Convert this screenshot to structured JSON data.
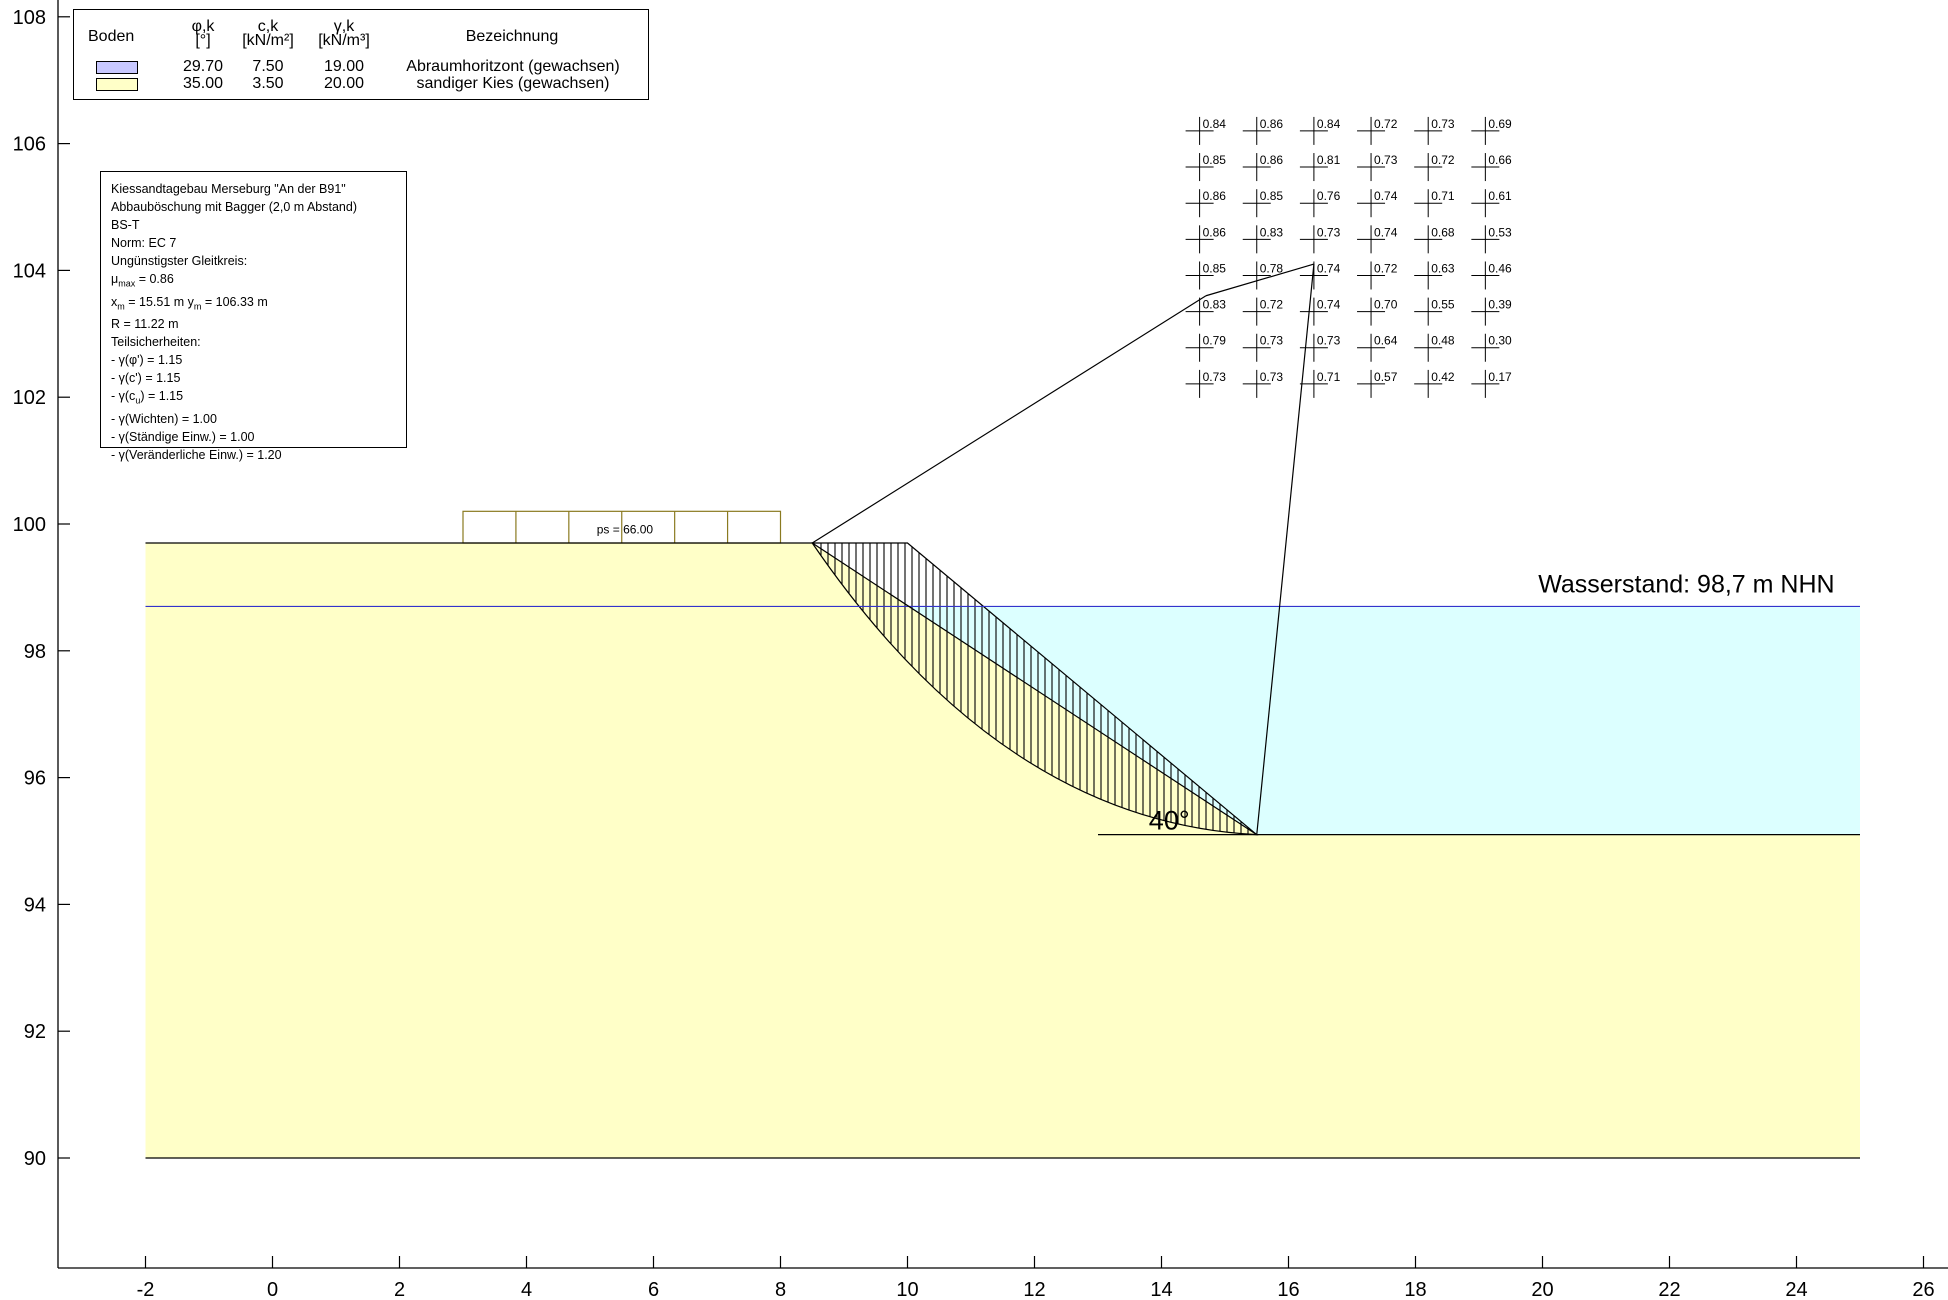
{
  "axes": {
    "x_ticks": [
      "-2",
      "0",
      "2",
      "4",
      "6",
      "8",
      "10",
      "12",
      "14",
      "16",
      "18",
      "20",
      "22",
      "24",
      "26"
    ],
    "y_ticks": [
      "108",
      "106",
      "104",
      "102",
      "100",
      "98",
      "96",
      "94",
      "92",
      "90"
    ]
  },
  "legend": {
    "headers": {
      "soil": "Boden",
      "phi": "φ,k",
      "phi_unit": "[°]",
      "c": "c,k",
      "c_unit": "[kN/m²]",
      "gamma": "γ,k",
      "gamma_unit": "[kN/m³]",
      "name": "Bezeichnung"
    },
    "rows": [
      {
        "color": "#c8c8ff",
        "phi": "29.70",
        "c": "7.50",
        "gamma": "19.00",
        "name": "Abraumhoritzont (gewachsen)"
      },
      {
        "color": "#ffffc8",
        "phi": "35.00",
        "c": "3.50",
        "gamma": "20.00",
        "name": "sandiger Kies (gewachsen)"
      }
    ]
  },
  "info": {
    "project": "Kiessandtagebau Merseburg \"An der B91\"",
    "case": "Abbauböschung mit Bagger (2,0 m Abstand)",
    "section": "BS-T",
    "norm": "Norm:  EC 7",
    "critical": "Ungünstigster Gleitkreis:",
    "mu_label": "μ",
    "mu_sub": "max",
    "mu_value": " = 0.86",
    "xm_label": "x",
    "xm_sub": "m",
    "xm_value": " = 15.51 m   ",
    "ym_label": "y",
    "ym_sub": "m",
    "ym_value": " = 106.33 m",
    "radius": "R = 11.22 m",
    "partial": "Teilsicherheiten:",
    "g_phi": " - γ(φ') = 1.15",
    "g_c": " - γ(c') = 1.15",
    "g_cu_a": " - γ(c",
    "g_cu_sub": "u",
    "g_cu_b": ") = 1.15",
    "g_weight": " - γ(Wichten) = 1.00",
    "g_perm": " - γ(Ständige Einw.) = 1.00",
    "g_var": " - γ(Veränderliche Einw.) = 1.20"
  },
  "annotations": {
    "water": "Wasserstand: 98,7 m NHN",
    "angle": "40°",
    "load": "ps = 66.00"
  },
  "colors": {
    "soil": "#ffffc8",
    "water": "#dcffff",
    "water_line": "#3333cc",
    "load": "#8a7a20"
  },
  "chart_data": {
    "type": "diagram",
    "xlim": [
      -2,
      26
    ],
    "ylim": [
      89,
      108.3
    ],
    "terrain": [
      [
        -2,
        99.7
      ],
      [
        8.5,
        99.7
      ],
      [
        15.5,
        95.1
      ],
      [
        25,
        95.1
      ]
    ],
    "soil_bottom": 90,
    "water_level": 98.7,
    "slope_angle_deg": 40,
    "surcharge": {
      "x_from": 3,
      "x_to": 8,
      "top": 100.2,
      "divisions": 6,
      "value": 66.0
    },
    "slip_circle": {
      "xm": 15.51,
      "ym": 106.33,
      "R": 11.22,
      "mu_max": 0.86,
      "from_x": 8.5,
      "to_x": 15.5
    },
    "hatched_toe_x": 10.0,
    "toe_line": {
      "x_from": 13.0,
      "x_to": 15.5,
      "y": 95.1
    },
    "grid_x": [
      14.6,
      15.5,
      16.4,
      17.3,
      18.2,
      19.1
    ],
    "grid_y": [
      106.2,
      105.63,
      105.06,
      104.49,
      103.92,
      103.35,
      102.78,
      102.21
    ],
    "utilization": [
      [
        "0.84",
        "0.86",
        "0.84",
        "0.72",
        "0.73",
        "0.69"
      ],
      [
        "0.85",
        "0.86",
        "0.81",
        "0.73",
        "0.72",
        "0.66"
      ],
      [
        "0.86",
        "0.85",
        "0.76",
        "0.74",
        "0.71",
        "0.61"
      ],
      [
        "0.86",
        "0.83",
        "0.73",
        "0.74",
        "0.68",
        "0.53"
      ],
      [
        "0.85",
        "0.78",
        "0.74",
        "0.72",
        "0.63",
        "0.46"
      ],
      [
        "0.83",
        "0.72",
        "0.74",
        "0.70",
        "0.55",
        "0.39"
      ],
      [
        "0.79",
        "0.73",
        "0.73",
        "0.64",
        "0.48",
        "0.30"
      ],
      [
        "0.73",
        "0.73",
        "0.71",
        "0.57",
        "0.42",
        "0.17"
      ]
    ]
  }
}
